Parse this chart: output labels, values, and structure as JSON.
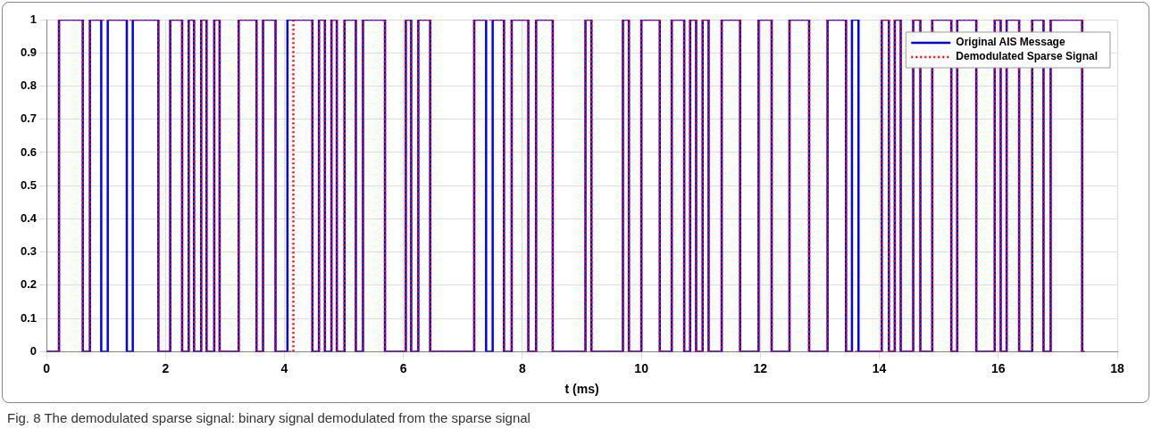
{
  "chart_data": {
    "type": "step",
    "xlabel": "t (ms)",
    "xlim": [
      0,
      18
    ],
    "xticks": [
      0,
      2,
      4,
      6,
      8,
      10,
      12,
      14,
      16,
      18
    ],
    "ylim": [
      0,
      1
    ],
    "yticks": [
      0,
      0.1,
      0.2,
      0.3,
      0.4,
      0.5,
      0.6,
      0.7,
      0.8,
      0.9,
      1
    ],
    "grid": true,
    "legend": "top right",
    "marker": "none",
    "annotations": [
      "Fig. 8 The demodulated sparse signal: binary signal demodulated from the sparse signal"
    ],
    "series": [
      {
        "name": "Original AIS Message",
        "color": "#0000ff",
        "line_style": "solid",
        "x": [
          0,
          0.21,
          0.61,
          0.73,
          0.92,
          1.03,
          1.35,
          1.45,
          1.88,
          2.08,
          2.28,
          2.39,
          2.48,
          2.6,
          2.69,
          2.82,
          2.91,
          3.23,
          3.53,
          3.64,
          3.85,
          4.05,
          4.47,
          4.58,
          4.68,
          4.79,
          4.88,
          5.01,
          5.2,
          5.32,
          5.69,
          6.04,
          6.13,
          6.25,
          6.45,
          7.19,
          7.39,
          7.5,
          7.69,
          7.82,
          8.1,
          8.23,
          8.51,
          9.06,
          9.16,
          9.69,
          9.79,
          10,
          10.31,
          10.51,
          10.72,
          10.82,
          10.92,
          11.03,
          11.13,
          11.35,
          11.66,
          11.97,
          12.19,
          12.49,
          12.82,
          13.13,
          13.44,
          13.54,
          13.65,
          14.04,
          14.16,
          14.26,
          14.36,
          14.57,
          14.69,
          14.89,
          15.21,
          15.31,
          15.63,
          15.94,
          16.04,
          16.14,
          16.35,
          16.57,
          16.76,
          16.88,
          17.41,
          17.45
        ],
        "values": [
          0,
          1,
          0,
          1,
          0,
          1,
          0,
          1,
          0,
          1,
          0,
          1,
          0,
          1,
          0,
          1,
          0,
          1,
          0,
          1,
          0,
          1,
          0,
          1,
          0,
          1,
          0,
          1,
          0,
          1,
          0,
          1,
          0,
          1,
          0,
          1,
          0,
          1,
          0,
          1,
          0,
          1,
          0,
          1,
          0,
          1,
          0,
          1,
          0,
          1,
          0,
          1,
          0,
          1,
          0,
          1,
          0,
          1,
          0,
          1,
          0,
          1,
          0,
          1,
          0,
          1,
          0,
          1,
          0,
          1,
          0,
          1,
          0,
          1,
          0,
          1,
          0,
          1,
          0,
          1,
          0,
          1,
          0,
          0
        ]
      },
      {
        "name": "Demodulated Sparse Signal",
        "color": "#ff0000",
        "line_style": "dotted",
        "x": [
          0,
          0.21,
          0.61,
          0.73,
          1.88,
          2.08,
          2.28,
          2.39,
          2.48,
          2.6,
          2.69,
          2.82,
          2.91,
          3.23,
          3.53,
          3.64,
          3.85,
          4.15,
          4.47,
          4.58,
          4.68,
          4.79,
          4.88,
          5.01,
          5.2,
          5.32,
          5.69,
          6.04,
          6.13,
          6.25,
          6.45,
          7.19,
          7.69,
          7.82,
          8.1,
          8.23,
          8.51,
          9.06,
          9.16,
          9.69,
          9.79,
          10,
          10.31,
          10.51,
          10.72,
          10.82,
          10.92,
          11.03,
          11.13,
          11.35,
          11.66,
          11.97,
          12.19,
          12.49,
          12.82,
          13.13,
          13.44,
          14.04,
          14.16,
          14.26,
          14.36,
          14.57,
          14.69,
          14.89,
          15.21,
          15.31,
          15.63,
          15.94,
          16.04,
          16.14,
          16.35,
          16.57,
          16.76,
          16.88,
          17.41,
          17.45
        ],
        "values": [
          0,
          1,
          0,
          1,
          0,
          1,
          0,
          1,
          0,
          1,
          0,
          1,
          0,
          1,
          0,
          1,
          0,
          1,
          0,
          1,
          0,
          1,
          0,
          1,
          0,
          1,
          0,
          1,
          0,
          1,
          0,
          1,
          0,
          1,
          0,
          1,
          0,
          1,
          0,
          1,
          0,
          1,
          0,
          1,
          0,
          1,
          0,
          1,
          0,
          1,
          0,
          1,
          0,
          1,
          0,
          1,
          0,
          1,
          0,
          1,
          0,
          1,
          0,
          1,
          0,
          1,
          0,
          1,
          0,
          1,
          0,
          1,
          0,
          1,
          0,
          0
        ]
      }
    ]
  }
}
